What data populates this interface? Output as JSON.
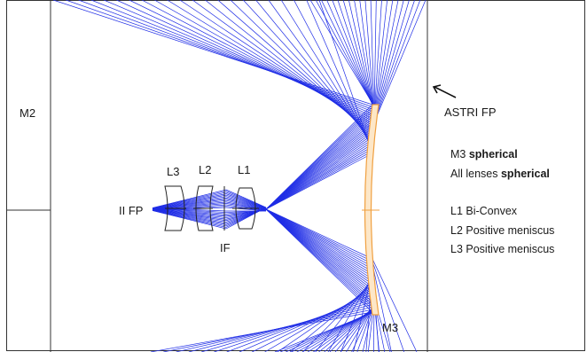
{
  "labels": {
    "m2": "M2",
    "m3": "M3",
    "astri_fp": "ASTRI FP",
    "l1": "L1",
    "l2": "L2",
    "l3": "L3",
    "ii_fp": "II FP",
    "if": "IF"
  },
  "notes": {
    "m3_prefix": "M3 ",
    "m3_bold": "spherical",
    "lenses_prefix": "All lenses ",
    "lenses_bold": "spherical",
    "l1_desc": "L1 Bi-Convex",
    "l2_desc": "L2 Positive meniscus",
    "l3_desc": "L3 Positive meniscus"
  },
  "colors": {
    "rays": "#1f2de6",
    "mirror": "#f0a040",
    "frame": "#333333",
    "lens": "#222222"
  }
}
